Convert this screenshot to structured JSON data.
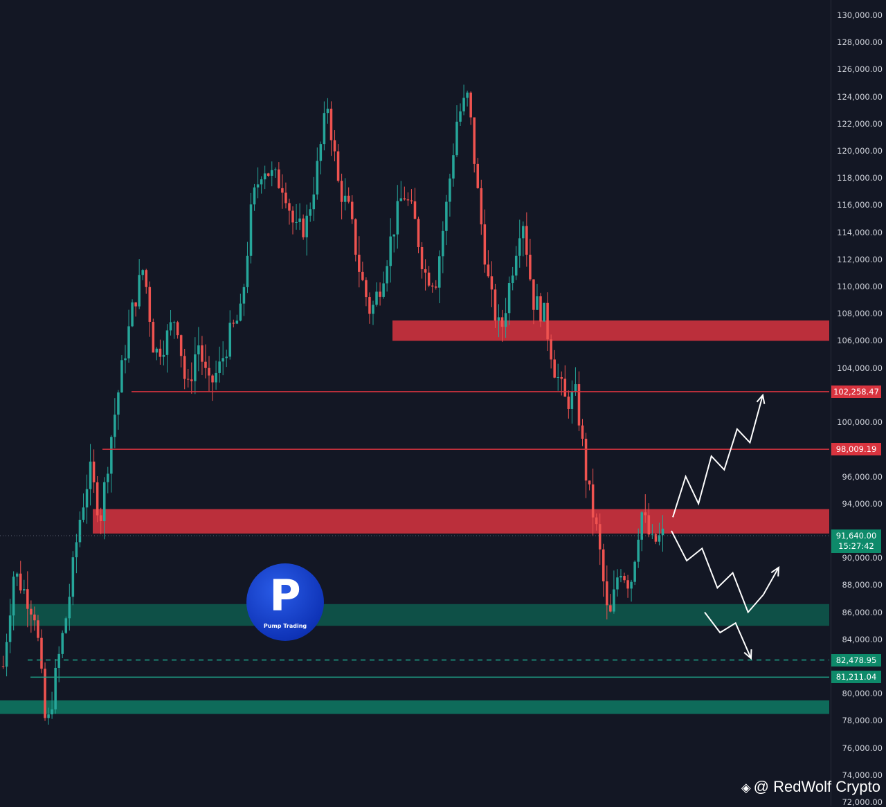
{
  "chart_data": {
    "type": "candlestick",
    "symbol_hint": "",
    "y_axis": {
      "min": 72000,
      "max": 130000,
      "ticks": [
        {
          "value": 130000,
          "label": "130,000.00"
        },
        {
          "value": 128000,
          "label": "128,000.00"
        },
        {
          "value": 126000,
          "label": "126,000.00"
        },
        {
          "value": 124000,
          "label": "124,000.00"
        },
        {
          "value": 122000,
          "label": "122,000.00"
        },
        {
          "value": 120000,
          "label": "120,000.00"
        },
        {
          "value": 118000,
          "label": "118,000.00"
        },
        {
          "value": 116000,
          "label": "116,000.00"
        },
        {
          "value": 114000,
          "label": "114,000.00"
        },
        {
          "value": 112000,
          "label": "112,000.00"
        },
        {
          "value": 110000,
          "label": "110,000.00"
        },
        {
          "value": 108000,
          "label": "108,000.00"
        },
        {
          "value": 106000,
          "label": "106,000.00"
        },
        {
          "value": 104000,
          "label": "104,000.00"
        },
        {
          "value": 100000,
          "label": "100,000.00"
        },
        {
          "value": 96000,
          "label": "96,000.00"
        },
        {
          "value": 94000,
          "label": "94,000.00"
        },
        {
          "value": 90000,
          "label": "90,000.00"
        },
        {
          "value": 88000,
          "label": "88,000.00"
        },
        {
          "value": 86000,
          "label": "86,000.00"
        },
        {
          "value": 84000,
          "label": "84,000.00"
        },
        {
          "value": 80000,
          "label": "80,000.00"
        },
        {
          "value": 78000,
          "label": "78,000.00"
        },
        {
          "value": 76000,
          "label": "76,000.00"
        },
        {
          "value": 74000,
          "label": "74,000.00"
        },
        {
          "value": 72000,
          "label": "72,000.00"
        }
      ]
    },
    "price_path": [
      [
        80500,
        82000
      ],
      [
        85800,
        89000
      ],
      [
        86500,
        87500
      ],
      [
        84000,
        85800
      ],
      [
        80000,
        77000
      ],
      [
        75000,
        82000
      ],
      [
        85000,
        86500
      ],
      [
        88000,
        92500
      ],
      [
        95000,
        96500
      ],
      [
        94000,
        93000
      ],
      [
        97000,
        99000
      ],
      [
        103000,
        104000
      ],
      [
        105000,
        108500
      ],
      [
        110000,
        111500
      ],
      [
        108000,
        105000
      ],
      [
        101500,
        106000
      ],
      [
        109000,
        108000
      ],
      [
        104000,
        102000
      ],
      [
        107500,
        106000
      ],
      [
        104000,
        102500
      ],
      [
        100500,
        104000
      ],
      [
        107000,
        106500
      ],
      [
        109500,
        108000
      ],
      [
        112000,
        116000
      ],
      [
        120000,
        119000
      ],
      [
        120500,
        118000
      ],
      [
        119500,
        117500
      ],
      [
        116000,
        114000
      ],
      [
        112500,
        114500
      ],
      [
        117500,
        118500
      ],
      [
        121000,
        123500
      ],
      [
        119000,
        117500
      ],
      [
        118000,
        115500
      ],
      [
        113000,
        111000
      ],
      [
        109500,
        108000
      ],
      [
        109000,
        110500
      ],
      [
        111500,
        114000
      ],
      [
        116000,
        117000
      ],
      [
        116500,
        115000
      ],
      [
        113500,
        111000
      ],
      [
        109000,
        110500
      ],
      [
        113000,
        116000
      ],
      [
        119000,
        122500
      ],
      [
        125500,
        124000
      ],
      [
        121000,
        116000
      ],
      [
        112000,
        109500
      ],
      [
        108000,
        106500
      ],
      [
        108500,
        111000
      ],
      [
        113500,
        115500
      ],
      [
        112000,
        109000
      ],
      [
        110500,
        108000
      ],
      [
        106000,
        104000
      ],
      [
        103000,
        101500
      ],
      [
        106500,
        102000
      ],
      [
        99000,
        95500
      ],
      [
        93500,
        91500
      ],
      [
        88000,
        85000
      ],
      [
        86500,
        89500
      ],
      [
        90500,
        88000
      ],
      [
        91000,
        93500
      ],
      [
        89500,
        91000
      ],
      [
        91640,
        91640
      ]
    ],
    "zones": [
      {
        "name": "resistance-zone-upper",
        "from": 106000,
        "to": 107500,
        "color": "#d9343f"
      },
      {
        "name": "resistance-zone-lower",
        "from": 91800,
        "to": 93600,
        "color": "#d9343f"
      },
      {
        "name": "support-zone-upper",
        "from": 85000,
        "to": 86600,
        "color": "#0e5a4e"
      },
      {
        "name": "support-zone-lower",
        "from": 78500,
        "to": 79500,
        "color": "#0e7a64"
      }
    ],
    "levels": [
      {
        "value": 102258.47,
        "label": "102,258.47",
        "color": "#d9343f",
        "style": "solid"
      },
      {
        "value": 98009.19,
        "label": "98,009.19",
        "color": "#d9343f",
        "style": "solid"
      },
      {
        "value": 82478.95,
        "label": "82,478.95",
        "color": "#1fa58a",
        "style": "dashed"
      },
      {
        "value": 81211.04,
        "label": "81,211.04",
        "color": "#1fa58a",
        "style": "solid"
      }
    ],
    "current": {
      "value": 91640,
      "label": "91,640.00",
      "countdown": "15:27:42"
    },
    "projections": [
      {
        "name": "bullish-path",
        "points": [
          [
            93000,
            0
          ],
          [
            96000,
            1
          ],
          [
            94000,
            2
          ],
          [
            97500,
            3
          ],
          [
            96500,
            4
          ],
          [
            99500,
            5
          ],
          [
            98500,
            6
          ],
          [
            102000,
            7
          ]
        ]
      },
      {
        "name": "bearish-then-bullish-path",
        "points": [
          [
            92000,
            0
          ],
          [
            89800,
            1
          ],
          [
            90700,
            2
          ],
          [
            87800,
            3
          ],
          [
            88900,
            4
          ],
          [
            86000,
            5
          ],
          [
            87300,
            6
          ],
          [
            89300,
            7
          ]
        ]
      },
      {
        "name": "bearish-path",
        "points": [
          [
            86000,
            0
          ],
          [
            84500,
            1
          ],
          [
            85200,
            2
          ],
          [
            82600,
            3
          ]
        ]
      }
    ]
  },
  "logo": {
    "letter": "P",
    "text": "Pump Trading"
  },
  "watermark": {
    "icon": "◈",
    "text": "@ RedWolf Crypto"
  }
}
